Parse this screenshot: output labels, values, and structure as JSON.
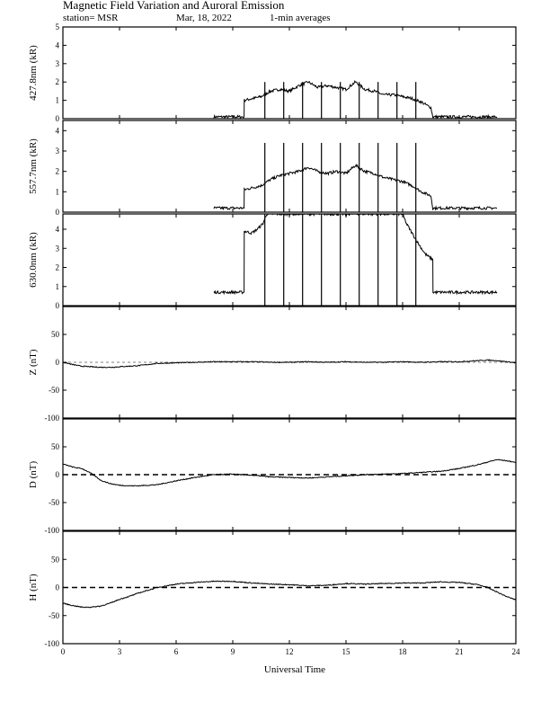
{
  "header": {
    "title": "Magnetic Field Variation and Auroral Emission",
    "station": "station= MSR",
    "date": "Mar, 18,  2022",
    "resolution": "1-min averages"
  },
  "chart_data": [
    {
      "type": "line",
      "ylabel": "427.8nm (kR)",
      "ylim": [
        0,
        5
      ],
      "yticks": [
        0,
        1,
        2,
        3,
        4,
        5
      ],
      "zero_line": "none",
      "series": [
        {
          "x": [
            8.0,
            9.6,
            9.61,
            10.5,
            11.0,
            11.5,
            12.0,
            12.5,
            13.0,
            13.5,
            14.0,
            14.5,
            15.0,
            15.5,
            16.0,
            16.5,
            17.0,
            17.5,
            18.0,
            18.5,
            19.0,
            19.5,
            19.6,
            20.0,
            23.0
          ],
          "y": [
            0.1,
            0.1,
            1.0,
            1.2,
            1.5,
            1.6,
            1.5,
            1.8,
            2.0,
            1.7,
            1.8,
            1.7,
            1.6,
            2.0,
            1.6,
            1.5,
            1.3,
            1.3,
            1.2,
            1.1,
            0.9,
            0.6,
            0.1,
            0.1,
            0.1
          ]
        }
      ],
      "spikes": {
        "x": [
          10.7,
          11.7,
          12.7,
          13.7,
          14.7,
          15.7,
          16.7,
          17.7,
          18.7
        ],
        "top": 2.0
      }
    },
    {
      "type": "line",
      "ylabel": "557.7nm (kR)",
      "ylim": [
        0,
        4.5
      ],
      "yticks": [
        0,
        1,
        2,
        3,
        4
      ],
      "zero_line": "none",
      "series": [
        {
          "x": [
            8.0,
            9.6,
            9.61,
            10.5,
            11.0,
            11.5,
            12.0,
            12.5,
            13.0,
            13.5,
            14.0,
            14.5,
            15.0,
            15.5,
            16.0,
            16.5,
            17.0,
            17.5,
            18.0,
            18.5,
            19.0,
            19.5,
            19.6,
            20.0,
            23.0
          ],
          "y": [
            0.2,
            0.2,
            1.1,
            1.3,
            1.6,
            1.8,
            1.9,
            2.0,
            2.2,
            2.0,
            1.9,
            2.0,
            1.9,
            2.3,
            2.0,
            1.9,
            1.7,
            1.6,
            1.5,
            1.3,
            1.0,
            0.8,
            0.2,
            0.2,
            0.2
          ]
        }
      ],
      "spikes": {
        "x": [
          10.7,
          11.7,
          12.7,
          13.7,
          14.7,
          15.7,
          16.7,
          17.7,
          18.7
        ],
        "top": 3.4
      }
    },
    {
      "type": "line",
      "ylabel": "630.0nm (kR)",
      "ylim": [
        0,
        4.8
      ],
      "yticks": [
        0,
        1,
        2,
        3,
        4
      ],
      "zero_line": "none",
      "series": [
        {
          "x": [
            8.0,
            9.6,
            9.61,
            10.0,
            10.3,
            10.6,
            10.8,
            18.0,
            18.2,
            18.5,
            18.8,
            19.2,
            19.6,
            19.61,
            20.0,
            23.0
          ],
          "y": [
            0.7,
            0.7,
            3.9,
            3.8,
            4.0,
            4.3,
            4.8,
            4.8,
            4.3,
            3.8,
            3.3,
            2.7,
            2.4,
            0.7,
            0.7,
            0.7
          ]
        }
      ],
      "spikes": {
        "x": [
          10.7,
          11.7,
          12.7,
          13.7,
          14.7,
          15.7,
          16.7,
          17.7,
          18.7
        ],
        "top": 4.8
      }
    },
    {
      "type": "line",
      "ylabel": "Z (nT)",
      "ylim": [
        -100,
        100
      ],
      "yticks": [
        -100,
        -50,
        0,
        50
      ],
      "zero_line": "thin",
      "series": [
        {
          "x": [
            0,
            0.5,
            1,
            1.5,
            2,
            2.5,
            3,
            3.5,
            4,
            4.5,
            5,
            6,
            7,
            8,
            9,
            10,
            11,
            12,
            13,
            14,
            15,
            16,
            17,
            18,
            19,
            20,
            21,
            21.5,
            22,
            22.5,
            23,
            23.5,
            24
          ],
          "y": [
            0,
            -4,
            -7,
            -8,
            -9,
            -9,
            -8,
            -7,
            -6,
            -4,
            -2,
            -1,
            0,
            1,
            1,
            1,
            0,
            0,
            1,
            0,
            1,
            0,
            0,
            1,
            0,
            1,
            1,
            2,
            3,
            4,
            3,
            1,
            -1
          ]
        }
      ]
    },
    {
      "type": "line",
      "ylabel": "D (nT)",
      "ylim": [
        -100,
        100
      ],
      "yticks": [
        -100,
        -50,
        0,
        50
      ],
      "zero_line": "thick",
      "series": [
        {
          "x": [
            0,
            0.3,
            0.6,
            1,
            1.3,
            1.6,
            2,
            2.5,
            3,
            3.5,
            4,
            4.5,
            5,
            6,
            7,
            8,
            9,
            10,
            11,
            12,
            13,
            14,
            15,
            16,
            17,
            18,
            19,
            20,
            21,
            22,
            23,
            23.5,
            24
          ],
          "y": [
            19,
            16,
            13,
            11,
            6,
            0,
            -10,
            -16,
            -19,
            -20,
            -20,
            -19,
            -18,
            -11,
            -5,
            0,
            1,
            -1,
            -4,
            -5,
            -6,
            -4,
            -2,
            0,
            1,
            2,
            4,
            6,
            11,
            18,
            27,
            25,
            22
          ]
        }
      ]
    },
    {
      "type": "line",
      "ylabel": "H (nT)",
      "ylim": [
        -100,
        100
      ],
      "yticks": [
        -100,
        -50,
        0,
        50
      ],
      "zero_line": "thick",
      "series": [
        {
          "x": [
            0,
            0.5,
            1,
            1.5,
            2,
            2.5,
            3,
            3.5,
            4,
            4.5,
            5,
            6,
            7,
            8,
            9,
            10,
            11,
            12,
            13,
            14,
            15,
            16,
            17,
            18,
            19,
            20,
            21,
            21.5,
            22,
            22.5,
            23,
            23.5,
            24
          ],
          "y": [
            -28,
            -32,
            -35,
            -35,
            -33,
            -28,
            -21,
            -16,
            -10,
            -5,
            0,
            6,
            9,
            11,
            11,
            8,
            6,
            5,
            3,
            4,
            7,
            6,
            7,
            8,
            8,
            10,
            9,
            7,
            5,
            0,
            -8,
            -16,
            -22
          ]
        }
      ]
    }
  ],
  "x_axis": {
    "xlim": [
      0,
      24
    ],
    "ticks": [
      0,
      3,
      6,
      9,
      12,
      15,
      18,
      21,
      24
    ],
    "label": "Universal Time"
  }
}
